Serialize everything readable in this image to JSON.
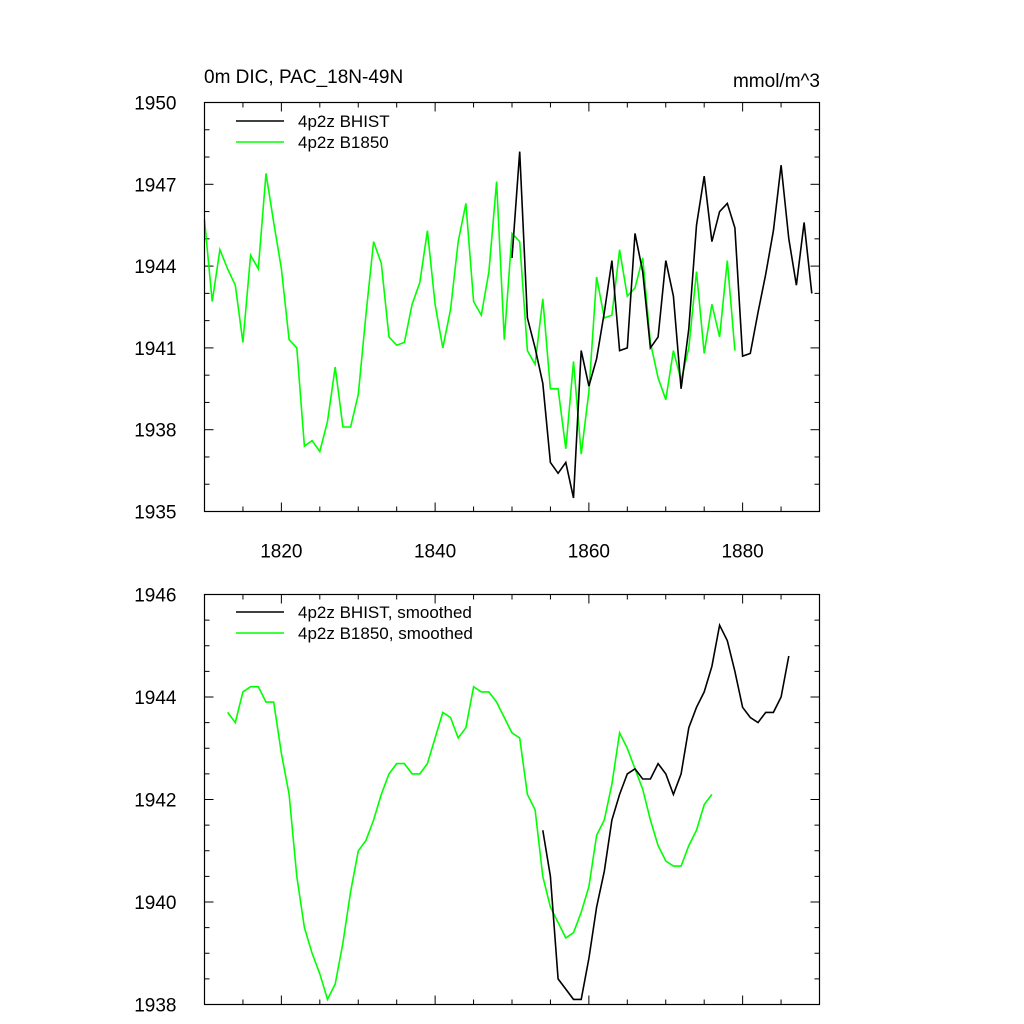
{
  "chart_data": [
    {
      "type": "line",
      "title": "0m DIC, PAC_18N-49N",
      "units": "mmol/m^3",
      "xlim": [
        1810,
        1890
      ],
      "ylim": [
        1935,
        1950
      ],
      "xticks": [
        1820,
        1840,
        1860,
        1880
      ],
      "xtick_labels": [
        "1820",
        "1840",
        "1860",
        "1880"
      ],
      "yticks": [
        1935,
        1938,
        1941,
        1944,
        1947,
        1950
      ],
      "ytick_labels": [
        "1935",
        "1938",
        "1941",
        "1944",
        "1947",
        "1950"
      ],
      "legend_position": "top-left",
      "series": [
        {
          "name": "4p2z BHIST",
          "color": "#000000",
          "x": [
            1850,
            1851,
            1852,
            1853,
            1854,
            1855,
            1856,
            1857,
            1858,
            1859,
            1860,
            1861,
            1862,
            1863,
            1864,
            1865,
            1866,
            1867,
            1868,
            1869,
            1870,
            1871,
            1872,
            1873,
            1874,
            1875,
            1876,
            1877,
            1878,
            1879,
            1880,
            1881,
            1882,
            1883,
            1884,
            1885,
            1886,
            1887,
            1888,
            1889
          ],
          "values": [
            1944.3,
            1948.2,
            1942.1,
            1941.0,
            1939.7,
            1936.8,
            1936.4,
            1936.8,
            1935.5,
            1940.9,
            1939.6,
            1940.6,
            1942.3,
            1944.2,
            1940.9,
            1941.0,
            1945.2,
            1943.8,
            1941.0,
            1941.4,
            1944.2,
            1942.9,
            1939.5,
            1941.7,
            1945.5,
            1947.3,
            1944.9,
            1946.0,
            1946.3,
            1945.4,
            1940.7,
            1940.8,
            1942.3,
            1943.7,
            1945.3,
            1947.7,
            1945.0,
            1943.3,
            1945.6,
            1943.0
          ]
        },
        {
          "name": "4p2z B1850",
          "color": "#00ff00",
          "x": [
            1810,
            1811,
            1812,
            1813,
            1814,
            1815,
            1816,
            1817,
            1818,
            1819,
            1820,
            1821,
            1822,
            1823,
            1824,
            1825,
            1826,
            1827,
            1828,
            1829,
            1830,
            1831,
            1832,
            1833,
            1834,
            1835,
            1836,
            1837,
            1838,
            1839,
            1840,
            1841,
            1842,
            1843,
            1844,
            1845,
            1846,
            1847,
            1848,
            1849,
            1850,
            1851,
            1852,
            1853,
            1854,
            1855,
            1856,
            1857,
            1858,
            1859,
            1860,
            1861,
            1862,
            1863,
            1864,
            1865,
            1866,
            1867,
            1868,
            1869,
            1870,
            1871,
            1872,
            1873,
            1874,
            1875,
            1876,
            1877,
            1878,
            1879
          ],
          "values": [
            1945.7,
            1942.7,
            1944.6,
            1943.9,
            1943.3,
            1941.2,
            1944.4,
            1943.9,
            1947.4,
            1945.6,
            1943.9,
            1941.3,
            1941.0,
            1937.4,
            1937.6,
            1937.2,
            1938.3,
            1940.3,
            1938.1,
            1938.1,
            1939.3,
            1942.2,
            1944.9,
            1944.1,
            1941.4,
            1941.1,
            1941.2,
            1942.6,
            1943.4,
            1945.3,
            1942.6,
            1941.0,
            1942.4,
            1944.9,
            1946.3,
            1942.7,
            1942.2,
            1943.8,
            1947.1,
            1941.3,
            1945.2,
            1944.9,
            1940.9,
            1940.4,
            1942.8,
            1939.5,
            1939.5,
            1937.3,
            1940.5,
            1937.1,
            1939.4,
            1943.6,
            1942.1,
            1942.2,
            1944.6,
            1942.9,
            1943.2,
            1944.3,
            1941.2,
            1939.9,
            1939.1,
            1940.9,
            1939.8,
            1941.0,
            1943.8,
            1940.8,
            1942.6,
            1941.4,
            1944.2,
            1940.9
          ]
        }
      ]
    },
    {
      "type": "line",
      "title": "",
      "xlim": [
        1810,
        1890
      ],
      "ylim": [
        1938,
        1946
      ],
      "xticks": [
        1820,
        1840,
        1860,
        1880
      ],
      "yticks": [
        1938,
        1940,
        1942,
        1944,
        1946
      ],
      "ytick_labels": [
        "1938",
        "1940",
        "1942",
        "1944",
        "1946"
      ],
      "legend_position": "top-left",
      "series": [
        {
          "name": "4p2z BHIST, smoothed",
          "color": "#000000",
          "x": [
            1854,
            1855,
            1856,
            1857,
            1858,
            1859,
            1860,
            1861,
            1862,
            1863,
            1864,
            1865,
            1866,
            1867,
            1868,
            1869,
            1870,
            1871,
            1872,
            1873,
            1874,
            1875,
            1876,
            1877,
            1878,
            1879,
            1880,
            1881,
            1882,
            1883,
            1884,
            1885,
            1886
          ],
          "values": [
            1941.4,
            1940.5,
            1938.5,
            1938.3,
            1938.1,
            1938.1,
            1938.9,
            1939.9,
            1940.6,
            1941.6,
            1942.1,
            1942.5,
            1942.6,
            1942.4,
            1942.4,
            1942.7,
            1942.5,
            1942.1,
            1942.5,
            1943.4,
            1943.8,
            1944.1,
            1944.6,
            1945.4,
            1945.1,
            1944.5,
            1943.8,
            1943.6,
            1943.5,
            1943.7,
            1943.7,
            1944.0,
            1944.8
          ]
        },
        {
          "name": "4p2z B1850, smoothed",
          "color": "#00ff00",
          "x": [
            1813,
            1814,
            1815,
            1816,
            1817,
            1818,
            1819,
            1820,
            1821,
            1822,
            1823,
            1824,
            1825,
            1826,
            1827,
            1828,
            1829,
            1830,
            1831,
            1832,
            1833,
            1834,
            1835,
            1836,
            1837,
            1838,
            1839,
            1840,
            1841,
            1842,
            1843,
            1844,
            1845,
            1846,
            1847,
            1848,
            1849,
            1850,
            1851,
            1852,
            1853,
            1854,
            1855,
            1856,
            1857,
            1858,
            1859,
            1860,
            1861,
            1862,
            1863,
            1864,
            1865,
            1866,
            1867,
            1868,
            1869,
            1870,
            1871,
            1872,
            1873,
            1874,
            1875,
            1876
          ],
          "values": [
            1943.7,
            1943.5,
            1944.1,
            1944.2,
            1944.2,
            1943.9,
            1943.9,
            1942.9,
            1942.1,
            1940.5,
            1939.5,
            1939.0,
            1938.6,
            1938.1,
            1938.4,
            1939.2,
            1940.2,
            1941.0,
            1941.2,
            1941.6,
            1942.1,
            1942.5,
            1942.7,
            1942.7,
            1942.5,
            1942.5,
            1942.7,
            1943.2,
            1943.7,
            1943.6,
            1943.2,
            1943.4,
            1944.2,
            1944.1,
            1944.1,
            1943.9,
            1943.6,
            1943.3,
            1943.2,
            1942.1,
            1941.8,
            1940.5,
            1939.9,
            1939.6,
            1939.3,
            1939.4,
            1939.8,
            1940.3,
            1941.3,
            1941.6,
            1942.3,
            1943.3,
            1943.0,
            1942.6,
            1942.2,
            1941.6,
            1941.1,
            1940.8,
            1940.7,
            1940.7,
            1941.1,
            1941.4,
            1941.9,
            1942.1
          ]
        }
      ]
    }
  ]
}
